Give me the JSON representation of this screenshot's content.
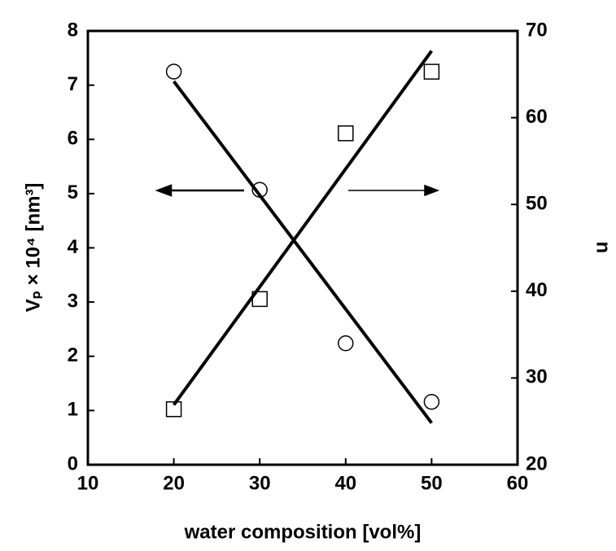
{
  "chart_data": {
    "type": "scatter",
    "x_label": "water composition [vol%]",
    "y_label": "Vₚ × 10⁴ [nm³]",
    "y2_label": "n",
    "xlim": [
      10,
      60
    ],
    "xticks": [
      10,
      20,
      30,
      40,
      50,
      60
    ],
    "ylim": [
      0,
      8
    ],
    "yticks": [
      0,
      1,
      2,
      3,
      4,
      5,
      6,
      7,
      8
    ],
    "y2lim": [
      20,
      70
    ],
    "y2ticks": [
      20,
      30,
      40,
      50,
      60,
      70
    ],
    "color": "#000000",
    "series": [
      {
        "marker": "circle",
        "axis": "y",
        "x": [
          20,
          30,
          40,
          50
        ],
        "values": [
          7.25,
          5.07,
          2.24,
          1.16
        ]
      },
      {
        "marker": "square",
        "axis": "y2",
        "x": [
          20,
          30,
          40,
          50
        ],
        "values": [
          26.4,
          39.1,
          58.2,
          65.3
        ]
      },
      {
        "marker": "line",
        "axis": "y",
        "x": [
          20,
          50
        ],
        "values": [
          7.07,
          0.77
        ]
      },
      {
        "marker": "line",
        "axis": "y2",
        "x": [
          20,
          50
        ],
        "values": [
          26.9,
          67.7
        ]
      }
    ]
  }
}
